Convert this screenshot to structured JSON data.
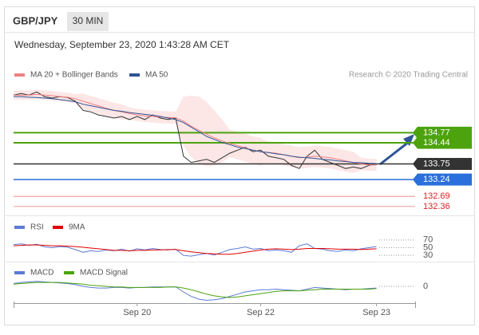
{
  "header": {
    "symbol": "GBP/JPY",
    "timeframe": "30 MIN",
    "timestamp": "Wednesday, September 23, 2020 1:43:28 AM CET"
  },
  "chart_data": [
    {
      "type": "line",
      "source": "Research © 2020 Trading Central",
      "xlim": [
        0,
        52
      ],
      "ylim": [
        132.2,
        136.5
      ],
      "color": "#333333",
      "values": [
        136.0,
        136.05,
        136.0,
        136.1,
        135.95,
        135.9,
        135.95,
        135.92,
        135.8,
        135.5,
        135.45,
        135.35,
        135.3,
        135.25,
        135.3,
        135.2,
        135.3,
        135.2,
        135.35,
        135.25,
        135.2,
        135.25,
        134.0,
        133.8,
        133.85,
        133.9,
        133.8,
        133.95,
        134.1,
        134.2,
        134.3,
        134.15,
        134.2,
        134.0,
        133.95,
        133.9,
        133.7,
        133.6,
        134.0,
        134.2,
        133.9,
        133.8,
        133.7,
        133.6,
        133.65,
        133.6,
        133.7,
        133.75
      ],
      "series": [
        {
          "name": "MA 20 + Bollinger Bands",
          "color": "#f08080",
          "values": [
            136.0,
            136.0,
            136.0,
            136.02,
            136.0,
            135.98,
            135.95,
            135.93,
            135.88,
            135.8,
            135.72,
            135.65,
            135.57,
            135.5,
            135.45,
            135.4,
            135.35,
            135.32,
            135.3,
            135.28,
            135.27,
            135.26,
            135.15,
            134.98,
            134.85,
            134.72,
            134.6,
            134.5,
            134.42,
            134.35,
            134.28,
            134.2,
            134.15,
            134.12,
            134.1,
            134.05,
            134.0,
            133.95,
            133.97,
            134.0,
            133.98,
            133.95,
            133.9,
            133.85,
            133.8,
            133.75,
            133.72,
            133.72
          ],
          "upper": [
            136.15,
            136.15,
            136.15,
            136.17,
            136.15,
            136.13,
            136.1,
            136.08,
            136.03,
            136.05,
            135.97,
            135.9,
            135.82,
            135.75,
            135.7,
            135.6,
            135.55,
            135.52,
            135.5,
            135.48,
            135.47,
            135.46,
            135.95,
            135.98,
            135.95,
            135.77,
            135.5,
            135.2,
            134.87,
            134.8,
            134.73,
            134.65,
            134.6,
            134.47,
            134.45,
            134.4,
            134.35,
            134.3,
            134.32,
            134.35,
            134.33,
            134.3,
            134.25,
            134.2,
            134.15,
            133.95,
            133.92,
            133.92
          ],
          "lower": [
            135.85,
            135.85,
            135.85,
            135.87,
            135.85,
            135.83,
            135.8,
            135.78,
            135.73,
            135.55,
            135.47,
            135.4,
            135.32,
            135.25,
            135.2,
            135.2,
            135.15,
            135.12,
            135.1,
            135.08,
            135.07,
            135.06,
            134.35,
            133.98,
            133.75,
            133.67,
            133.7,
            133.8,
            133.97,
            133.9,
            133.83,
            133.75,
            133.7,
            133.77,
            133.75,
            133.7,
            133.65,
            133.6,
            133.62,
            133.65,
            133.63,
            133.6,
            133.55,
            133.5,
            133.45,
            133.55,
            133.52,
            133.52
          ]
        },
        {
          "name": "MA 50",
          "color": "#2f5597",
          "values": [
            135.95,
            135.95,
            135.93,
            135.92,
            135.9,
            135.88,
            135.85,
            135.82,
            135.78,
            135.7,
            135.65,
            135.6,
            135.55,
            135.5,
            135.47,
            135.43,
            135.4,
            135.37,
            135.34,
            135.3,
            135.25,
            135.2,
            135.1,
            134.95,
            134.8,
            134.65,
            134.55,
            134.45,
            134.38,
            134.3,
            134.25,
            134.2,
            134.15,
            134.12,
            134.08,
            134.05,
            134.0,
            133.97,
            133.95,
            133.93,
            133.9,
            133.88,
            133.85,
            133.83,
            133.8,
            133.79,
            133.77,
            133.76
          ]
        }
      ],
      "levels": [
        {
          "value": 134.77,
          "color": "#4ca30d",
          "label_style": "box"
        },
        {
          "value": 134.44,
          "color": "#4ca30d",
          "label_style": "box"
        },
        {
          "value": 133.75,
          "color": "#333333",
          "label_style": "box"
        },
        {
          "value": 133.24,
          "color": "#2a6fdb",
          "label_style": "box"
        },
        {
          "value": 132.69,
          "color": "#dd2222",
          "label_style": "text"
        },
        {
          "value": 132.36,
          "color": "#dd2222",
          "label_style": "text"
        }
      ]
    },
    {
      "type": "line",
      "xlim": [
        0,
        52
      ],
      "ylim": [
        20,
        80
      ],
      "yticks": [
        30,
        50,
        70
      ],
      "series": [
        {
          "name": "RSI",
          "color": "#5b7bd5",
          "values": [
            58,
            60,
            56,
            59,
            52,
            50,
            53,
            51,
            45,
            38,
            42,
            40,
            44,
            42,
            46,
            41,
            47,
            44,
            48,
            45,
            44,
            46,
            30,
            28,
            32,
            35,
            31,
            38,
            45,
            48,
            52,
            46,
            48,
            42,
            44,
            42,
            38,
            55,
            60,
            48,
            46,
            42,
            40,
            44,
            42,
            47,
            50,
            53
          ]
        },
        {
          "name": "9MA",
          "color": "#e00000",
          "values": [
            55,
            56,
            57,
            57,
            56,
            55,
            55,
            54,
            53,
            51,
            49,
            47,
            45,
            43,
            43,
            42,
            43,
            43,
            44,
            44,
            45,
            45,
            42,
            39,
            37,
            35,
            34,
            33,
            33,
            35,
            38,
            41,
            44,
            46,
            47,
            46,
            45,
            46,
            48,
            48,
            48,
            47,
            46,
            46,
            46,
            45,
            46,
            47
          ]
        }
      ]
    },
    {
      "type": "line",
      "xlim": [
        0,
        52
      ],
      "ylim": [
        -0.3,
        0.2
      ],
      "yticks": [
        0
      ],
      "xticks": [
        {
          "value": 16,
          "label": "Sep 20"
        },
        {
          "value": 32,
          "label": "Sep 22"
        },
        {
          "value": 47,
          "label": "Sep 23"
        }
      ],
      "series": [
        {
          "name": "MACD",
          "color": "#5b7bd5",
          "values": [
            0.05,
            0.07,
            0.08,
            0.09,
            0.08,
            0.07,
            0.06,
            0.05,
            0.03,
            0.0,
            -0.02,
            -0.03,
            -0.03,
            -0.02,
            -0.02,
            -0.03,
            -0.02,
            -0.02,
            -0.01,
            -0.01,
            -0.01,
            -0.01,
            -0.1,
            -0.18,
            -0.23,
            -0.25,
            -0.24,
            -0.22,
            -0.18,
            -0.14,
            -0.1,
            -0.08,
            -0.06,
            -0.06,
            -0.05,
            -0.06,
            -0.07,
            -0.08,
            -0.05,
            -0.02,
            -0.03,
            -0.04,
            -0.05,
            -0.06,
            -0.05,
            -0.05,
            -0.04,
            -0.03
          ]
        },
        {
          "name": "MACD Signal",
          "color": "#4ca30d",
          "values": [
            0.04,
            0.05,
            0.06,
            0.07,
            0.07,
            0.07,
            0.07,
            0.06,
            0.05,
            0.04,
            0.02,
            0.01,
            0.0,
            -0.01,
            -0.01,
            -0.02,
            -0.02,
            -0.02,
            -0.02,
            -0.02,
            -0.01,
            -0.01,
            -0.03,
            -0.06,
            -0.1,
            -0.14,
            -0.17,
            -0.19,
            -0.2,
            -0.19,
            -0.17,
            -0.15,
            -0.13,
            -0.11,
            -0.09,
            -0.08,
            -0.08,
            -0.08,
            -0.07,
            -0.06,
            -0.05,
            -0.05,
            -0.05,
            -0.05,
            -0.05,
            -0.05,
            -0.05,
            -0.04
          ]
        }
      ]
    }
  ]
}
